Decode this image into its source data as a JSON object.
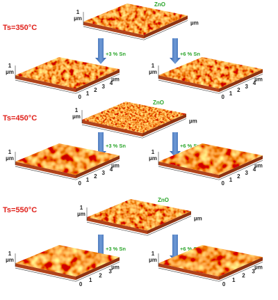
{
  "rows": [
    {
      "temperature": "Ts=350°C",
      "zno": {
        "label": "ZnO",
        "z": "1",
        "z_unit": "µm",
        "unit": "µm"
      },
      "left": {
        "label": "+3 % Sn",
        "z": "1",
        "z_unit": "µm",
        "ticks": [
          "0",
          "1",
          "2",
          "3",
          "4"
        ],
        "unit": "µm"
      },
      "right": {
        "label": "+6 % Sn",
        "z": "1",
        "z_unit": "µm",
        "ticks": [
          "0",
          "1",
          "2",
          "3",
          "4"
        ],
        "unit": "µm"
      }
    },
    {
      "temperature": "Ts=450°C",
      "zno": {
        "label": "ZnO",
        "z": "1",
        "z_unit": "µm",
        "unit": "µm"
      },
      "left": {
        "label": "+3 % Sn",
        "z": "1",
        "z_unit": "µm",
        "ticks": [
          "0",
          "1",
          "2",
          "3",
          "4"
        ],
        "unit": "µm"
      },
      "right": {
        "label": "+6 % Sn",
        "z": "1",
        "z_unit": "µm",
        "ticks": [
          "0",
          "1",
          "2",
          "3",
          "4"
        ],
        "unit": "µm"
      }
    },
    {
      "temperature": "Ts=550°C",
      "zno": {
        "label": "ZnO",
        "z": "1",
        "z_unit": "µm",
        "unit": "µm"
      },
      "left": {
        "label": "+3 % Sn",
        "z": "1",
        "z_unit": "µm",
        "ticks": [
          "0",
          "1",
          "2",
          "3"
        ],
        "unit": "µm"
      },
      "right": {
        "label": "+6 % Sn",
        "z": "1",
        "z_unit": "µm",
        "ticks": [
          "0",
          "1",
          "2",
          "3"
        ],
        "unit": "µm"
      }
    }
  ]
}
